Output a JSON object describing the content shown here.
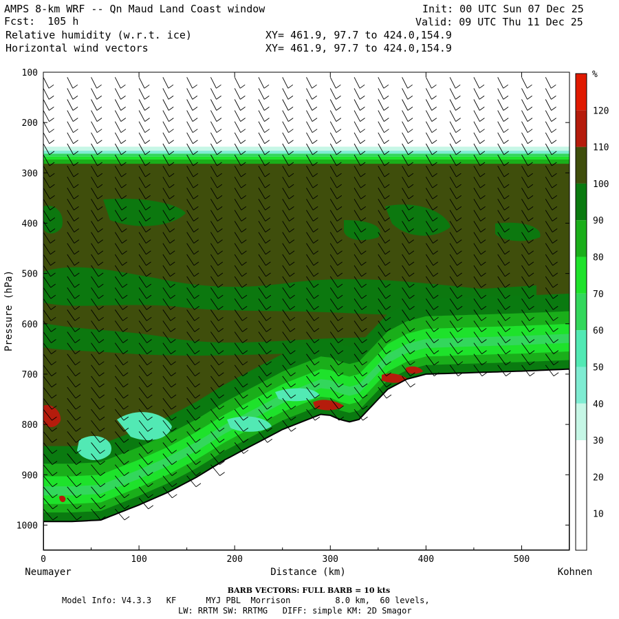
{
  "header": {
    "title": "AMPS 8-km WRF -- Qn Maud Land Coast window",
    "forecast": "Fcst:  105 h",
    "field1": "Relative humidity (w.r.t. ice)",
    "field2": "Horizontal wind vectors",
    "xy1": "XY= 461.9, 97.7 to 424.0,154.9",
    "xy2": "XY= 461.9, 97.7 to 424.0,154.9",
    "init": "Init: 00 UTC Sun 07 Dec 25",
    "valid": "Valid: 09 UTC Thu 11 Dec 25"
  },
  "chart_data": {
    "type": "heatmap",
    "subtype": "cross-section",
    "xlabel": "Distance (km)",
    "ylabel": "Pressure (hPa)",
    "xlim": [
      0,
      550
    ],
    "ylim": [
      1050,
      100
    ],
    "x_ticks": [
      0,
      100,
      200,
      300,
      400,
      500
    ],
    "y_ticks": [
      100,
      200,
      300,
      400,
      500,
      600,
      700,
      800,
      900,
      1000
    ],
    "left_end_label": "Neumayer",
    "right_end_label": "Kohnen",
    "colorbar": {
      "unit": "%",
      "levels": [
        10,
        20,
        30,
        40,
        50,
        60,
        70,
        80,
        90,
        100,
        110,
        120
      ],
      "colors": [
        "#ffffff",
        "#ffffff",
        "#ffffff",
        "#c6f7e6",
        "#7fecd2",
        "#52e9b4",
        "#33d75c",
        "#1ee22b",
        "#1aae1a",
        "#0a7a10",
        "#3f4e0c",
        "#b51c0c",
        "#e01a00"
      ]
    },
    "terrain_profile": {
      "x": [
        0,
        30,
        60,
        80,
        100,
        130,
        160,
        190,
        220,
        250,
        270,
        290,
        300,
        310,
        320,
        330,
        340,
        350,
        360,
        380,
        400,
        450,
        500,
        550
      ],
      "p": [
        993,
        993,
        990,
        975,
        960,
        935,
        905,
        870,
        840,
        810,
        795,
        780,
        782,
        790,
        795,
        790,
        770,
        750,
        730,
        710,
        700,
        697,
        694,
        690
      ]
    },
    "moist_layer_top_hpa": 270,
    "barbs_note": "BARB VECTORS:  FULL BARB = 10 kts"
  },
  "footer": {
    "barbs": "BARB VECTORS:  FULL BARB = 10 kts",
    "model_line1": "Model Info: V4.3.3   KF      MYJ PBL  Morrison         8.0 km,  60 levels,",
    "model_line2": "LW: RRTM SW: RRTMG   DIFF: simple KM: 2D Smagor"
  }
}
